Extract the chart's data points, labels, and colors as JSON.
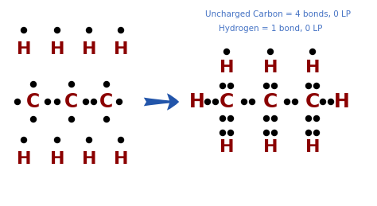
{
  "bg_color": "#ffffff",
  "atom_color": "#8B0000",
  "dot_color": "#000000",
  "arrow_color": "#2255AA",
  "text_color": "#4472C4",
  "annotation_line1": "Uncharged Carbon = 4 bonds, 0 LP",
  "annotation_line2": "Hydrogen = 1 bond, 0 LP",
  "figsize": [
    4.74,
    2.59
  ],
  "dpi": 100,
  "xlim": [
    0,
    474
  ],
  "ylim": [
    0,
    259
  ]
}
